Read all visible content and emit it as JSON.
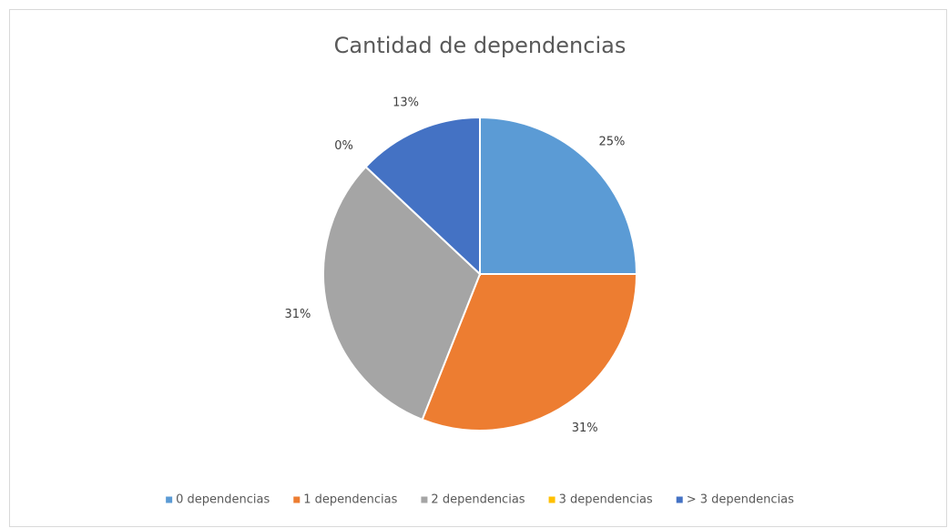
{
  "chart_data": {
    "type": "pie",
    "title": "Cantidad de dependencias",
    "categories": [
      "0 dependencias",
      "1 dependencias",
      "2 dependencias",
      "3 dependencias",
      "> 3 dependencias"
    ],
    "values": [
      25,
      31,
      31,
      0,
      13
    ],
    "value_labels": [
      "25%",
      "31%",
      "31%",
      "0%",
      "13%"
    ],
    "colors": [
      "#5b9bd5",
      "#ed7d31",
      "#a5a5a5",
      "#ffc000",
      "#4472c4"
    ],
    "legend": "bottom"
  }
}
